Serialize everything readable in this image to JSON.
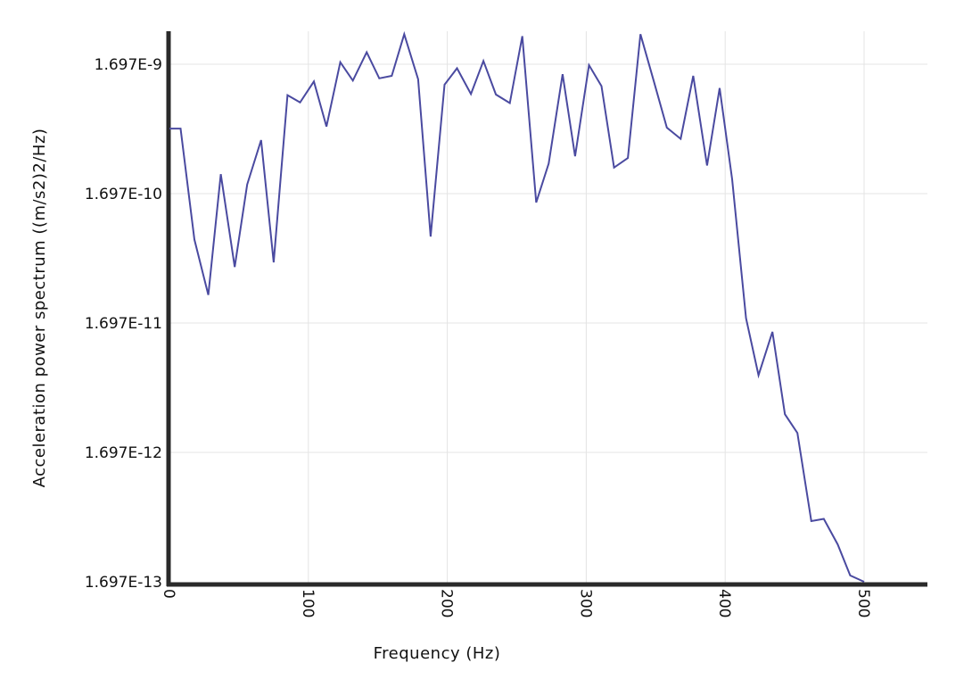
{
  "chart_data": {
    "type": "line",
    "title": "",
    "xlabel": "Frequency (Hz)",
    "ylabel": "Acceleration power spectrum ((m/s2)2/Hz)",
    "xlim": [
      0,
      545
    ],
    "ylim": [
      1.697e-13,
      3e-09
    ],
    "y_scale": "log",
    "grid": true,
    "line_color": "#4a4aa0",
    "x_ticks": [
      0,
      100,
      200,
      300,
      400,
      500
    ],
    "x_tick_labels": [
      "0",
      "100",
      "200",
      "300",
      "400",
      "500"
    ],
    "y_ticks": [
      1.697e-13,
      1.697e-12,
      1.697e-11,
      1.697e-10,
      1.697e-09
    ],
    "y_tick_labels": [
      "1.697E-13",
      "1.697E-12",
      "1.697E-11",
      "1.697E-10",
      "1.697E-9"
    ],
    "series": [
      {
        "x": [
          0,
          8,
          18,
          28,
          37,
          47,
          56,
          66,
          75,
          85,
          94,
          104,
          113,
          123,
          132,
          142,
          151,
          160,
          169,
          179,
          188,
          198,
          207,
          217,
          226,
          235,
          245,
          254,
          264,
          273,
          283,
          292,
          302,
          311,
          320,
          330,
          339,
          349,
          358,
          368,
          377,
          387,
          396,
          405,
          415,
          424,
          434,
          443,
          452,
          462,
          471,
          481,
          490,
          500
        ],
        "y": [
          5.4e-10,
          5.4e-10,
          7.5e-11,
          2.8e-11,
          2.4e-10,
          4.6e-11,
          2e-10,
          4.4e-10,
          5e-11,
          9.8e-10,
          8.6e-10,
          1.25e-09,
          5.6e-10,
          1.76e-09,
          1.27e-09,
          2.1e-09,
          1.32e-09,
          1.38e-09,
          2.9e-09,
          1.3e-09,
          7.9e-11,
          1.18e-09,
          1.58e-09,
          1e-09,
          1.8e-09,
          9.9e-10,
          8.5e-10,
          2.8e-09,
          1.45e-10,
          2.9e-10,
          1.42e-09,
          3.3e-10,
          1.67e-09,
          1.15e-09,
          2.7e-10,
          3.2e-10,
          2.9e-09,
          1.22e-09,
          5.5e-10,
          4.5e-10,
          1.38e-09,
          2.8e-10,
          1.11e-09,
          2.2e-10,
          1.85e-11,
          6.7e-12,
          1.45e-11,
          3.35e-12,
          2.4e-12,
          5e-13,
          5.2e-13,
          3.3e-13,
          1.9e-13,
          1.697e-13
        ]
      }
    ]
  }
}
